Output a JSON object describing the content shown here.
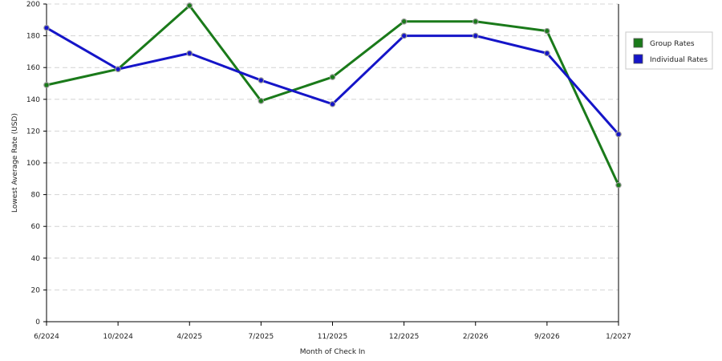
{
  "chart_data": {
    "type": "line",
    "xlabel": "Month of Check In",
    "ylabel": "Lowest Average Rate (USD)",
    "categories": [
      "6/2024",
      "10/2024",
      "4/2025",
      "7/2025",
      "11/2025",
      "12/2025",
      "2/2026",
      "9/2026",
      "1/2027"
    ],
    "ylim": [
      0,
      200
    ],
    "yticks": [
      0,
      20,
      40,
      60,
      80,
      100,
      120,
      140,
      160,
      180,
      200
    ],
    "grid": true,
    "legend_position": "right",
    "series": [
      {
        "name": "Group Rates",
        "color": "#1a7a1a",
        "values": [
          149,
          159,
          199,
          139,
          154,
          189,
          189,
          183,
          86
        ]
      },
      {
        "name": "Individual Rates",
        "color": "#1515c8",
        "values": [
          185,
          159,
          169,
          152,
          137,
          180,
          180,
          169,
          118
        ]
      }
    ]
  }
}
